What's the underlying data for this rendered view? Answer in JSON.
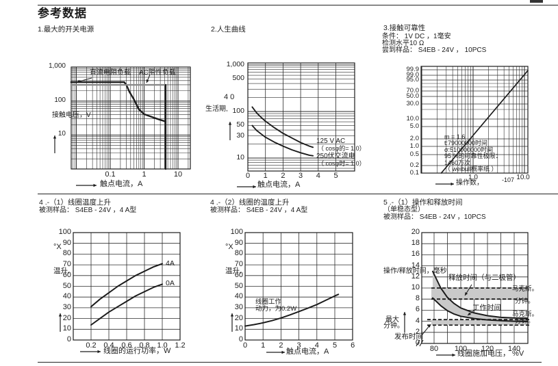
{
  "page": {
    "title": "参考数据"
  },
  "sections": {
    "s1": {
      "heading": "1.最大的开关电源"
    },
    "s2": {
      "heading": "2.人生曲线"
    },
    "s3": {
      "heading": "3.接触可靠性",
      "cond1": "条件： 1V DC ，1毫安",
      "cond2": "检测水平10 Ω",
      "cond3": "尝到样品： S4EB - 24V ， 10PCS"
    },
    "s4a": {
      "heading": "4 .-（1）线圈温度上升",
      "sample": "被测样品： S4EB - 24V ，4 A型"
    },
    "s4b": {
      "heading": "4 .-（2）线圈的温度上升",
      "sample": "被测样品： S4EB - 24V ，4 A型"
    },
    "s5": {
      "heading": "5 .-（1）操作和释放时间",
      "subheading": "（单稳态型）",
      "sample": "被测样品： S4EB - 24V ，10PCS"
    }
  },
  "colors": {
    "line": "#1c1c1c",
    "gray_line": "#8a8a8a",
    "band_fill": "#c9c9c9"
  },
  "chart_data": [
    {
      "id": "c1",
      "name": "max-switching-capacity",
      "type": "line",
      "xscale": "log",
      "yscale": "log",
      "xlabel": "触点电流，A",
      "ylabel": "接触电压，V",
      "xlim": [
        0.007,
        23
      ],
      "ylim": [
        1,
        1120
      ],
      "xticks": [
        {
          "v": 0.1,
          "t": "0.1"
        },
        {
          "v": 1,
          "t": "1"
        },
        {
          "v": 10,
          "t": "10"
        }
      ],
      "yticks": [
        {
          "v": 1000,
          "t": "1,000"
        },
        {
          "v": 100,
          "t": "100"
        },
        {
          "v": 10,
          "t": "10"
        }
      ],
      "series": [
        {
          "name": "dc-resistive-load",
          "label": "直流电阻负载",
          "points": [
            [
              0.007,
              360
            ],
            [
              0.26,
              360
            ],
            [
              0.3,
              295
            ],
            [
              0.37,
              185
            ],
            [
              0.5,
              112
            ],
            [
              0.7,
              57
            ],
            [
              1,
              41
            ],
            [
              2,
              32
            ],
            [
              3,
              28
            ],
            [
              4.3,
              25
            ]
          ]
        },
        {
          "name": "ac-resistive-load",
          "label": "AC阻性负载",
          "points": [
            [
              0.007,
              298
            ],
            [
              4.3,
              298
            ]
          ]
        },
        {
          "name": "max-current-limit",
          "points": [
            [
              4.3,
              298
            ],
            [
              4.3,
              1
            ]
          ]
        }
      ]
    },
    {
      "id": "c2",
      "name": "life-curve",
      "type": "line",
      "xscale": "linear",
      "yscale": "log",
      "xlabel": "触点电流，A",
      "ylabel": "生活期,",
      "ylabel_prefix": "4 0",
      "xlim": [
        0,
        6.1
      ],
      "ylim": [
        5.5,
        1110
      ],
      "xticks": [
        {
          "v": 0,
          "t": "0"
        },
        {
          "v": 1,
          "t": "1"
        },
        {
          "v": 2,
          "t": "2"
        },
        {
          "v": 3,
          "t": "3"
        },
        {
          "v": 4,
          "t": "4"
        },
        {
          "v": 5,
          "t": "5"
        }
      ],
      "yticks": [
        {
          "v": 1000,
          "t": "1,000"
        },
        {
          "v": 500,
          "t": "500"
        },
        {
          "v": 100,
          "t": "100"
        },
        {
          "v": 50,
          "t": "50"
        },
        {
          "v": 30,
          "t": "30"
        },
        {
          "v": 10,
          "t": "10"
        }
      ],
      "series": [
        {
          "name": "125vac",
          "label": "125 V AC",
          "sublabel": "（ cosφ的= 1.0）",
          "points": [
            [
              0.25,
              125
            ],
            [
              0.5,
              93
            ],
            [
              0.75,
              75
            ],
            [
              1,
              62
            ],
            [
              1.5,
              45
            ],
            [
              2,
              34
            ],
            [
              2.5,
              27
            ],
            [
              3,
              21.5
            ],
            [
              3.5,
              18
            ],
            [
              3.7,
              17
            ]
          ]
        },
        {
          "name": "250vac",
          "label": "250伏交流电",
          "sublabel": "（ cosφ时= 1.0）",
          "points": [
            [
              0.25,
              50
            ],
            [
              0.5,
              39
            ],
            [
              0.75,
              33
            ],
            [
              1,
              28
            ],
            [
              1.5,
              22
            ],
            [
              2,
              18
            ],
            [
              2.5,
              15
            ],
            [
              3,
              13
            ],
            [
              3.5,
              11.5
            ],
            [
              3.7,
              11.2
            ]
          ]
        }
      ]
    },
    {
      "id": "c3",
      "name": "contact-reliability",
      "type": "line",
      "xscale": "log",
      "yscale": "weibull",
      "xlabel": "操作数，",
      "xlabel_exponent": "-107",
      "xticks": [
        {
          "v": 1,
          "t": "1.0"
        },
        {
          "v": 10,
          "t": "10.0"
        }
      ],
      "yticks": [
        {
          "v": 99.9,
          "t": "99.9"
        },
        {
          "v": 99,
          "t": "99.0"
        },
        {
          "v": 95,
          "t": "95.0"
        },
        {
          "v": 70,
          "t": "70.0"
        },
        {
          "v": 50,
          "t": "50.0"
        },
        {
          "v": 30,
          "t": "30.0"
        },
        {
          "v": 10,
          "t": "10.0"
        },
        {
          "v": 5,
          "t": "5.0"
        },
        {
          "v": 2,
          "t": "2.0"
        },
        {
          "v": 1,
          "t": "1.0"
        },
        {
          "v": 0.5,
          "t": "0.5"
        },
        {
          "v": 0.2,
          "t": "0.2"
        },
        {
          "v": 0.1,
          "t": "0.1"
        }
      ],
      "ygrid_extra": [
        90,
        80,
        20
      ],
      "series": [
        {
          "name": "cumulative-failure",
          "points": [
            [
              0.24,
              0.1
            ],
            [
              12,
              99.9
            ]
          ]
        }
      ],
      "annotation": [
        "m = 1.6",
        "t:79000000时间",
        "σ:510000000时间",
        "95 %的可靠性极限：",
        "1460万次",
        "（ weibull概率纸 ）"
      ]
    },
    {
      "id": "c4a",
      "name": "coil-temperature-rise-vs-power",
      "type": "line",
      "xscale": "linear",
      "yscale": "linear",
      "xlabel": "线圈的运行功率，W",
      "ylabel": "温升,",
      "ylabel_unit": "°X",
      "xlim": [
        0,
        1.2
      ],
      "ylim": [
        0,
        100
      ],
      "xticks": [
        {
          "v": 0.2,
          "t": "0.2"
        },
        {
          "v": 0.4,
          "t": "0.4"
        },
        {
          "v": 0.6,
          "t": "0.6"
        },
        {
          "v": 0.8,
          "t": "0.8"
        },
        {
          "v": 1.0,
          "t": "1.0"
        },
        {
          "v": 1.2,
          "t": "1.2"
        }
      ],
      "yticks": [
        {
          "v": 100,
          "t": "100"
        },
        {
          "v": 90,
          "t": "90"
        },
        {
          "v": 80,
          "t": "80"
        },
        {
          "v": 70,
          "t": "70"
        },
        {
          "v": 60,
          "t": "60"
        },
        {
          "v": 50,
          "t": "50"
        },
        {
          "v": 40,
          "t": "40"
        },
        {
          "v": 30,
          "t": "30"
        },
        {
          "v": 20,
          "t": "20"
        },
        {
          "v": 10,
          "t": "10"
        },
        {
          "v": 0,
          "t": "0"
        }
      ],
      "series": [
        {
          "name": "4a-load",
          "label": "4A",
          "points": [
            [
              0.2,
              31
            ],
            [
              0.3,
              38
            ],
            [
              0.4,
              44
            ],
            [
              0.5,
              50
            ],
            [
              0.6,
              55
            ],
            [
              0.7,
              60
            ],
            [
              0.8,
              64
            ],
            [
              0.9,
              68
            ],
            [
              1.0,
              71
            ]
          ]
        },
        {
          "name": "0a-load",
          "label": "0A",
          "points": [
            [
              0.2,
              14
            ],
            [
              0.3,
              20
            ],
            [
              0.4,
              26
            ],
            [
              0.5,
              31
            ],
            [
              0.6,
              36
            ],
            [
              0.7,
              41
            ],
            [
              0.8,
              45
            ],
            [
              0.9,
              49
            ],
            [
              1.0,
              52
            ]
          ]
        }
      ]
    },
    {
      "id": "c4b",
      "name": "coil-temperature-rise-vs-current",
      "type": "line",
      "xscale": "linear",
      "yscale": "linear",
      "xlabel": "触点电流，A",
      "ylabel": "温升,",
      "ylabel_unit": "°X",
      "xlim": [
        0,
        6
      ],
      "ylim": [
        0,
        100
      ],
      "xticks": [
        {
          "v": 0,
          "t": "0"
        },
        {
          "v": 1,
          "t": "1"
        },
        {
          "v": 2,
          "t": "2"
        },
        {
          "v": 3,
          "t": "3"
        },
        {
          "v": 4,
          "t": "4"
        },
        {
          "v": 5,
          "t": "5"
        },
        {
          "v": 6,
          "t": "6"
        }
      ],
      "yticks": [
        {
          "v": 100,
          "t": "100"
        },
        {
          "v": 90,
          "t": "90"
        },
        {
          "v": 80,
          "t": "80"
        },
        {
          "v": 70,
          "t": "70"
        },
        {
          "v": 60,
          "t": "60"
        },
        {
          "v": 50,
          "t": "50"
        },
        {
          "v": 40,
          "t": "40"
        },
        {
          "v": 30,
          "t": "30"
        },
        {
          "v": 20,
          "t": "20"
        },
        {
          "v": 10,
          "t": "10"
        },
        {
          "v": 0,
          "t": "0"
        }
      ],
      "annotation": [
        "线圈工作",
        "动力，为0.2W"
      ],
      "series": [
        {
          "name": "temperature-rise",
          "points": [
            [
              0,
              13
            ],
            [
              0.5,
              14.3
            ],
            [
              1,
              16
            ],
            [
              1.5,
              18
            ],
            [
              2,
              20.5
            ],
            [
              2.5,
              23.4
            ],
            [
              3,
              26.5
            ],
            [
              3.5,
              29.7
            ],
            [
              4,
              33
            ],
            [
              4.5,
              37
            ],
            [
              5,
              41
            ],
            [
              5.2,
              42.5
            ]
          ]
        }
      ]
    },
    {
      "id": "c5",
      "name": "operate-and-release-time",
      "type": "line",
      "xscale": "linear",
      "yscale": "linear",
      "xlabel": "线圈施加电压， %V",
      "ylabel": "操作/释放时间，毫秒",
      "xlim": [
        71,
        150
      ],
      "ylim": [
        0,
        20
      ],
      "xticks": [
        {
          "v": 80,
          "t": "80"
        },
        {
          "v": 100,
          "t": "100"
        },
        {
          "v": 120,
          "t": "120"
        },
        {
          "v": 140,
          "t": "140"
        }
      ],
      "yticks": [
        {
          "v": 20,
          "t": "20"
        },
        {
          "v": 18,
          "t": "18"
        },
        {
          "v": 16,
          "t": "16"
        },
        {
          "v": 14,
          "t": "14"
        },
        {
          "v": 12,
          "t": "12"
        },
        {
          "v": 10,
          "t": "10"
        },
        {
          "v": 8,
          "t": "8"
        },
        {
          "v": 6,
          "t": "6"
        },
        {
          "v": 4,
          "t": "4"
        },
        {
          "v": 2,
          "t": "2"
        },
        {
          "v": 0,
          "t": "0"
        }
      ],
      "series_label": "工作时间",
      "series": [
        {
          "name": "operate-time-max",
          "points": [
            [
              79,
              13
            ],
            [
              85,
              10
            ],
            [
              90,
              8.3
            ],
            [
              95,
              7.2
            ],
            [
              100,
              6.4
            ],
            [
              110,
              5.5
            ],
            [
              120,
              5.0
            ],
            [
              130,
              4.7
            ],
            [
              140,
              4.6
            ],
            [
              150,
              4.55
            ]
          ]
        },
        {
          "name": "operate-time-min",
          "points": [
            [
              79,
              8.2
            ],
            [
              85,
              6.8
            ],
            [
              90,
              5.9
            ],
            [
              95,
              5.3
            ],
            [
              100,
              4.9
            ],
            [
              110,
              4.5
            ],
            [
              120,
              4.25
            ],
            [
              130,
              4.1
            ],
            [
              140,
              4.0
            ],
            [
              150,
              3.95
            ]
          ]
        }
      ],
      "bands": [
        {
          "name": "release-time-with-diode",
          "label": "释放时间（与二极管）",
          "max": 10,
          "min": 8,
          "max_label": "马克斯。",
          "min_label": "分钟。"
        },
        {
          "name": "release-time",
          "label": "发布时间",
          "max": 4.3,
          "min": 3.3,
          "max_label": "马克斯。",
          "min_label": "分钟。",
          "left_max_label": "最大",
          "left_min_label": "分钟。"
        }
      ]
    }
  ]
}
